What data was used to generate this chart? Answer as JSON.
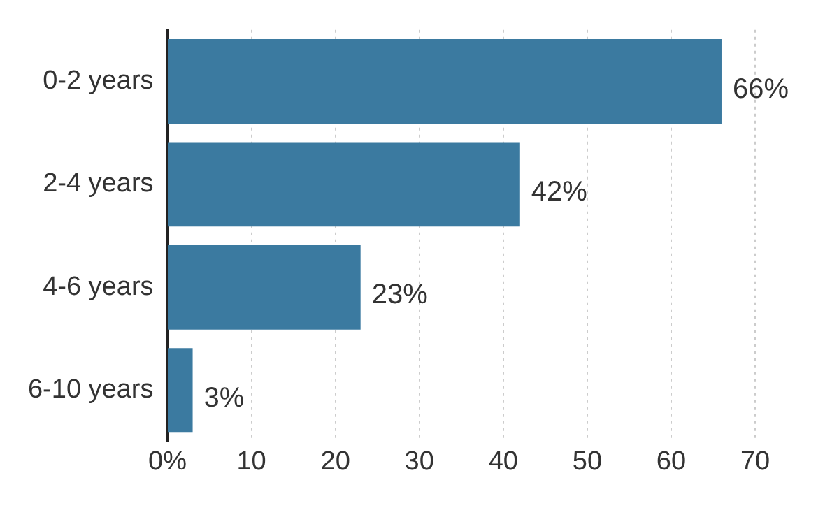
{
  "chart_data": {
    "type": "bar",
    "orientation": "horizontal",
    "categories": [
      "0-2 years",
      "2-4 years",
      "4-6 years",
      "6-10 years"
    ],
    "values": [
      66,
      42,
      23,
      3
    ],
    "color": "#3b7aa0",
    "value_labels": [
      "66%",
      "42%",
      "23%",
      "3%"
    ],
    "xlim": [
      0,
      70
    ],
    "xticks": [
      {
        "value": 0,
        "label": "0%"
      },
      10,
      20,
      30,
      40,
      50,
      60,
      70
    ],
    "grid": "x",
    "legend": false
  }
}
